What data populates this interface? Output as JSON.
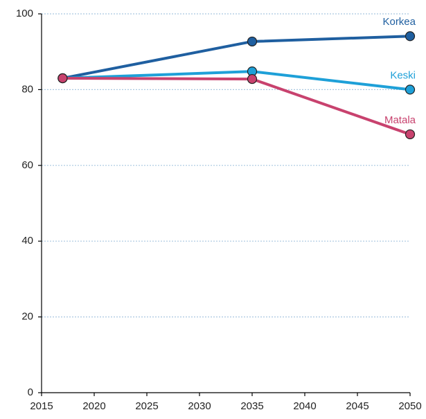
{
  "chart_data": {
    "type": "line",
    "x": [
      2017,
      2035,
      2050
    ],
    "series": [
      {
        "name": "Korkea",
        "color": "#1f5fa0",
        "values": [
          83,
          92.7,
          94.1
        ]
      },
      {
        "name": "Keski",
        "color": "#1ea0d8",
        "values": [
          83,
          84.8,
          80
        ]
      },
      {
        "name": "Matala",
        "color": "#c8426e",
        "values": [
          83,
          82.8,
          68.2
        ]
      }
    ],
    "xlim": [
      2015,
      2050
    ],
    "xticks": [
      2015,
      2020,
      2025,
      2030,
      2035,
      2040,
      2045,
      2050
    ],
    "ylim": [
      0,
      100
    ],
    "yticks": [
      0,
      20,
      40,
      60,
      80,
      100
    ],
    "grid": true
  }
}
